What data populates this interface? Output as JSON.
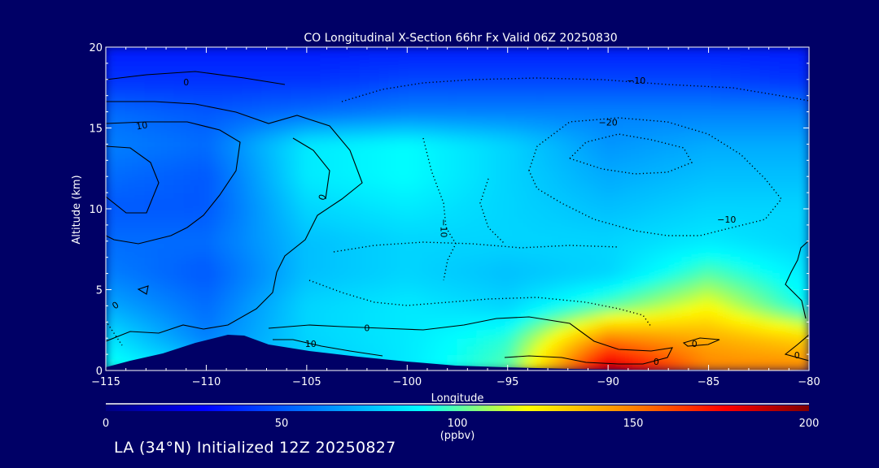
{
  "chart_data": {
    "type": "heatmap",
    "title": "CO Longitudinal X-Section 66hr  Fx Valid 06Z 20250830",
    "xlabel": "Longitude",
    "ylabel": "Altitude (km)",
    "xlim": [
      -115,
      -80
    ],
    "ylim": [
      0,
      20
    ],
    "x_ticks": [
      "-115",
      "-110",
      "-105",
      "-100",
      "-95",
      "-90",
      "-85",
      "-80"
    ],
    "y_ticks": [
      "0",
      "5",
      "10",
      "15",
      "20"
    ],
    "colorbar": {
      "label": "(ppbv)",
      "range": [
        0,
        200
      ],
      "ticks": [
        "0",
        "50",
        "100",
        "150",
        "200"
      ],
      "colors": [
        "#000080",
        "#0000ff",
        "#0080ff",
        "#00ffff",
        "#ffff00",
        "#ff8000",
        "#ff0000",
        "#800000"
      ]
    },
    "contour_labels": [
      "0",
      "0",
      "0",
      "0",
      "0",
      "0",
      "0",
      "10",
      "10",
      "-10",
      "-10",
      "-10",
      "-20"
    ],
    "field": {
      "lons": [
        -115,
        -110,
        -105,
        -100,
        -95,
        -90,
        -85,
        -80
      ],
      "alts": [
        0,
        2,
        4,
        6,
        8,
        10,
        12,
        14,
        16,
        18,
        20
      ],
      "ppbv": [
        [
          95,
          80,
          75,
          85,
          100,
          190,
          150,
          150
        ],
        [
          85,
          60,
          80,
          85,
          95,
          150,
          140,
          130
        ],
        [
          70,
          55,
          80,
          85,
          80,
          100,
          120,
          90
        ],
        [
          60,
          50,
          75,
          80,
          75,
          80,
          100,
          85
        ],
        [
          55,
          55,
          75,
          80,
          80,
          80,
          85,
          80
        ],
        [
          50,
          50,
          80,
          85,
          80,
          75,
          80,
          80
        ],
        [
          55,
          50,
          85,
          90,
          80,
          70,
          75,
          75
        ],
        [
          60,
          55,
          85,
          90,
          80,
          65,
          70,
          70
        ],
        [
          55,
          50,
          55,
          60,
          60,
          60,
          60,
          60
        ],
        [
          40,
          40,
          40,
          45,
          45,
          45,
          45,
          40
        ],
        [
          35,
          35,
          35,
          35,
          35,
          35,
          35,
          35
        ]
      ]
    }
  },
  "footer_text": "LA (34°N) Initialized 12Z 20250827"
}
